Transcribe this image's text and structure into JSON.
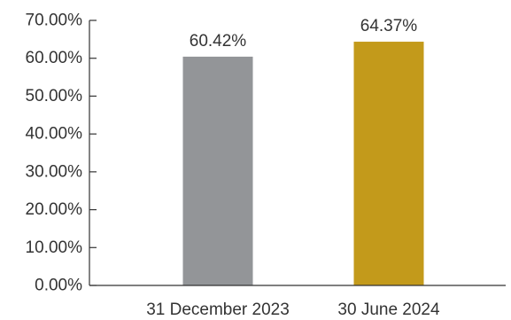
{
  "chart_data": {
    "type": "bar",
    "categories": [
      "31 December 2023",
      "30 June 2024"
    ],
    "values": [
      60.42,
      64.37
    ],
    "data_labels": [
      "60.42%",
      "64.37%"
    ],
    "y_ticks": [
      {
        "value": 0,
        "label": "0.00%"
      },
      {
        "value": 10,
        "label": "10.00%"
      },
      {
        "value": 20,
        "label": "20.00%"
      },
      {
        "value": 30,
        "label": "30.00%"
      },
      {
        "value": 40,
        "label": "40.00%"
      },
      {
        "value": 50,
        "label": "50.00%"
      },
      {
        "value": 60,
        "label": "60.00%"
      },
      {
        "value": 70,
        "label": "70.00%"
      }
    ],
    "ylim": [
      0,
      70
    ],
    "grid": false,
    "legend": "none",
    "colors": [
      "#939598",
      "#c39a1b"
    ]
  }
}
